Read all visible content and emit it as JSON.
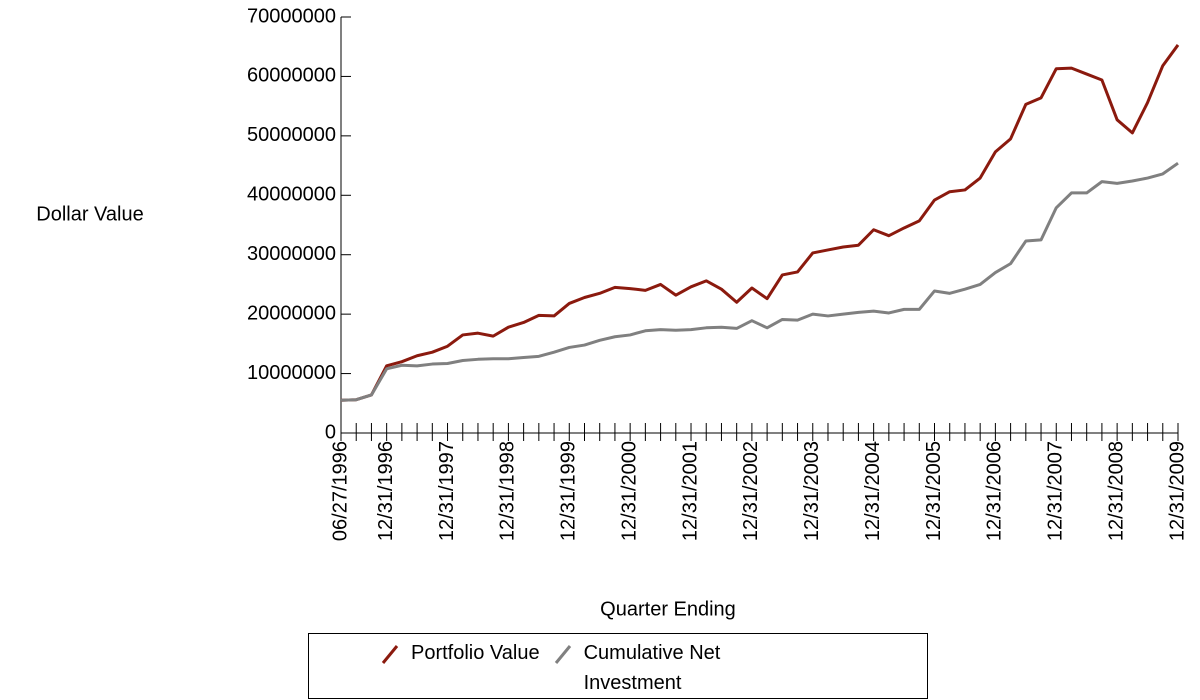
{
  "chart_data": {
    "type": "line",
    "y_label": "Dollar Value",
    "x_label": "Quarter Ending",
    "categories": [
      "06/27/1996",
      null,
      null,
      "12/31/1996",
      null,
      null,
      null,
      "12/31/1997",
      null,
      null,
      null,
      "12/31/1998",
      null,
      null,
      null,
      "12/31/1999",
      null,
      null,
      null,
      "12/31/2000",
      null,
      null,
      null,
      "12/31/2001",
      null,
      null,
      null,
      "12/31/2002",
      null,
      null,
      null,
      "12/31/2003",
      null,
      null,
      null,
      "12/31/2004",
      null,
      null,
      null,
      "12/31/2005",
      null,
      null,
      null,
      "12/31/2006",
      null,
      null,
      null,
      "12/31/2007",
      null,
      null,
      null,
      "12/31/2008",
      null,
      null,
      null,
      "12/31/2009"
    ],
    "series": [
      {
        "name": "Portfolio Value",
        "color": "#8b1a0e",
        "values": [
          5500000,
          5600000,
          6400000,
          11300000,
          12000000,
          13000000,
          13600000,
          14600000,
          16500000,
          16800000,
          16300000,
          17800000,
          18600000,
          19800000,
          19700000,
          21800000,
          22800000,
          23500000,
          24500000,
          24300000,
          24000000,
          25000000,
          23200000,
          24600000,
          25600000,
          24200000,
          22000000,
          24400000,
          22600000,
          26600000,
          27100000,
          30300000,
          30800000,
          31300000,
          31600000,
          34200000,
          33200000,
          34500000,
          35700000,
          39200000,
          40600000,
          40900000,
          42900000,
          47300000,
          49500000,
          55300000,
          56400000,
          61300000,
          61400000,
          60400000,
          59400000,
          52700000,
          50500000,
          55600000,
          61800000,
          65300000
        ]
      },
      {
        "name": "Cumulative Net Investment",
        "color": "#808080",
        "values": [
          5500000,
          5600000,
          6400000,
          10800000,
          11400000,
          11300000,
          11600000,
          11700000,
          12200000,
          12400000,
          12500000,
          12500000,
          12700000,
          12900000,
          13600000,
          14400000,
          14800000,
          15600000,
          16200000,
          16500000,
          17200000,
          17400000,
          17300000,
          17400000,
          17700000,
          17800000,
          17600000,
          18900000,
          17700000,
          19100000,
          19000000,
          20000000,
          19700000,
          20000000,
          20300000,
          20500000,
          20200000,
          20800000,
          20800000,
          23900000,
          23500000,
          24200000,
          25000000,
          27000000,
          28500000,
          32300000,
          32500000,
          37900000,
          40400000,
          40400000,
          42300000,
          42000000,
          42400000,
          42900000,
          43600000,
          45400000
        ]
      }
    ],
    "ylim": [
      0,
      70000000
    ],
    "yticks": [
      0,
      10000000,
      20000000,
      30000000,
      40000000,
      50000000,
      60000000,
      70000000
    ]
  }
}
